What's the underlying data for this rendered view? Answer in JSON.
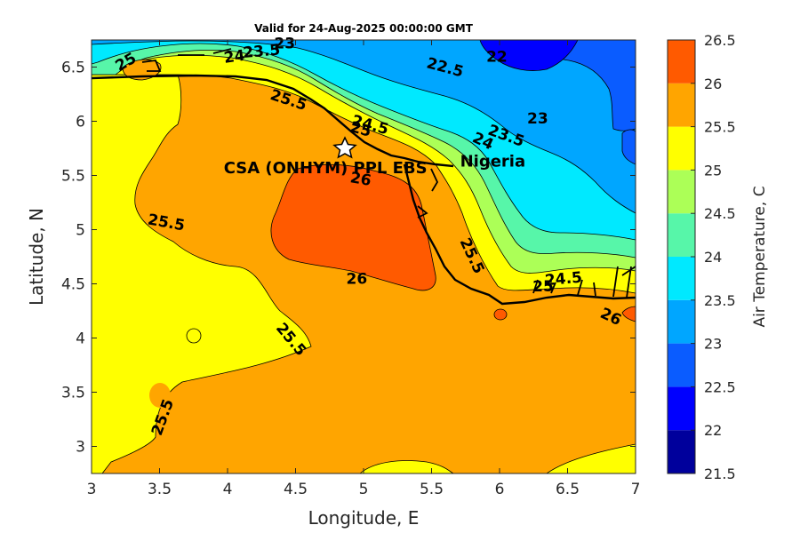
{
  "chart_data": {
    "type": "contour",
    "title": "Valid for 24-Aug-2025 00:00:00 GMT",
    "xlabel": "Longitude, E",
    "ylabel": "Latitude, N",
    "xlim": [
      3,
      7
    ],
    "ylim": [
      2.75,
      6.75
    ],
    "x_ticks": [
      "3",
      "3.5",
      "4",
      "4.5",
      "5",
      "5.5",
      "6",
      "6.5",
      "7"
    ],
    "y_ticks": [
      "3",
      "3.5",
      "4",
      "4.5",
      "5",
      "5.5",
      "6",
      "6.5"
    ],
    "colorbar": {
      "label": "Air Temperature, C",
      "levels": [
        "21.5",
        "22",
        "22.5",
        "23",
        "23.5",
        "24",
        "24.5",
        "25",
        "25.5",
        "26",
        "26.5"
      ],
      "colors": [
        "#00009c",
        "#0000ff",
        "#0a5cff",
        "#00a6ff",
        "#00e9ff",
        "#57f6a9",
        "#acff57",
        "#ffff00",
        "#ffa500",
        "#ff5a00",
        "#ff0000"
      ]
    },
    "contour_labels": [
      {
        "text": "25",
        "lon": 3.25,
        "lat": 6.55,
        "rot": -30
      },
      {
        "text": "24",
        "lon": 4.05,
        "lat": 6.6,
        "rot": -8
      },
      {
        "text": "23.5",
        "lon": 4.25,
        "lat": 6.65,
        "rot": -5
      },
      {
        "text": "23",
        "lon": 4.42,
        "lat": 6.72,
        "rot": 0
      },
      {
        "text": "22.5",
        "lon": 5.6,
        "lat": 6.5,
        "rot": 15
      },
      {
        "text": "22",
        "lon": 5.98,
        "lat": 6.6,
        "rot": 0
      },
      {
        "text": "25.5",
        "lon": 4.45,
        "lat": 6.2,
        "rot": 18
      },
      {
        "text": "24.5",
        "lon": 5.05,
        "lat": 5.97,
        "rot": 15
      },
      {
        "text": "25",
        "lon": 4.98,
        "lat": 5.93,
        "rot": 15
      },
      {
        "text": "23",
        "lon": 6.28,
        "lat": 6.03,
        "rot": 0
      },
      {
        "text": "23.5",
        "lon": 6.05,
        "lat": 5.87,
        "rot": 20
      },
      {
        "text": "24",
        "lon": 5.88,
        "lat": 5.82,
        "rot": 25
      },
      {
        "text": "26",
        "lon": 4.98,
        "lat": 5.47,
        "rot": 10
      },
      {
        "text": "25.5",
        "lon": 3.55,
        "lat": 5.07,
        "rot": 10
      },
      {
        "text": "25.5",
        "lon": 5.8,
        "lat": 4.76,
        "rot": 65
      },
      {
        "text": "24.5",
        "lon": 6.47,
        "lat": 4.55,
        "rot": -5
      },
      {
        "text": "25",
        "lon": 6.32,
        "lat": 4.48,
        "rot": 0
      },
      {
        "text": "26",
        "lon": 4.95,
        "lat": 4.55,
        "rot": 0
      },
      {
        "text": "26",
        "lon": 6.82,
        "lat": 4.2,
        "rot": 25
      },
      {
        "text": "25.5",
        "lon": 4.47,
        "lat": 3.99,
        "rot": 50
      },
      {
        "text": "25.5",
        "lon": 3.52,
        "lat": 3.27,
        "rot": -70
      }
    ],
    "site": {
      "label": "CSA (ONHYM) PPL EBS",
      "lon": 4.87,
      "lat": 5.77
    },
    "country_label": {
      "text": "Nigeria",
      "lon": 5.95,
      "lat": 5.63
    }
  }
}
